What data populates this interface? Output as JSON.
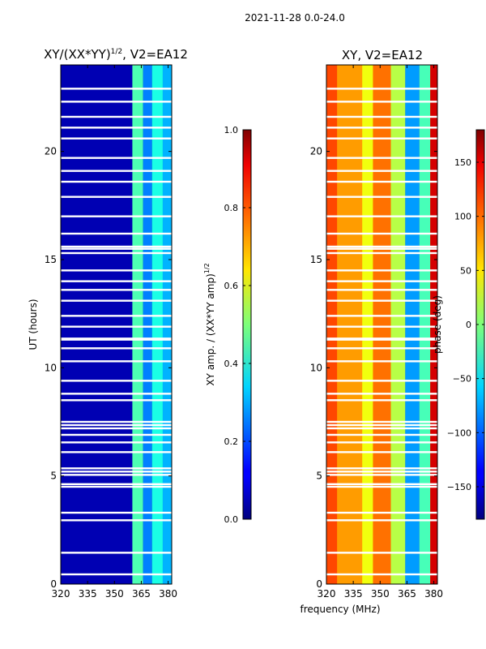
{
  "suptitle": "2021-11-28 0.0-24.0",
  "xlabel_shared": "frequency (MHz)",
  "chart_data": [
    {
      "type": "heatmap",
      "title_main": "XY/(XX*YY)",
      "title_sup": "1/2",
      "title_tail": ", V2=EA12",
      "xlim": [
        320,
        382
      ],
      "ylim": [
        0,
        24
      ],
      "x_ticks": [
        320,
        335,
        350,
        365,
        380
      ],
      "y_ticks": [
        0,
        5,
        10,
        15,
        20
      ],
      "ylabel": "UT (hours)",
      "colorbar": {
        "label_main": "XY amp. / (XX*YY amp)",
        "label_sup": "1/2",
        "range": [
          0.0,
          1.0
        ],
        "ticks": [
          "0.0",
          "0.2",
          "0.4",
          "0.6",
          "0.8",
          "1.0"
        ],
        "colormap": "jet"
      },
      "bands": [
        {
          "from": 320,
          "to": 360,
          "value": 0.05
        },
        {
          "from": 360,
          "to": 366,
          "value": 0.45
        },
        {
          "from": 366,
          "to": 371,
          "value": 0.25
        },
        {
          "from": 371,
          "to": 377,
          "value": 0.4
        },
        {
          "from": 377,
          "to": 382,
          "value": 0.3
        }
      ],
      "gaps_hours": [
        0.45,
        1.45,
        2.95,
        3.3,
        4.5,
        4.62,
        5.05,
        5.2,
        5.35,
        6.1,
        6.55,
        6.9,
        7.2,
        7.35,
        7.5,
        8.5,
        8.8,
        9.4,
        10.3,
        10.9,
        11.3,
        11.35,
        11.9,
        12.4,
        13.1,
        13.6,
        14.0,
        14.5,
        15.3,
        15.5,
        15.6,
        16.2,
        17.0,
        17.9,
        18.6,
        19.1,
        19.7,
        20.6,
        21.1,
        21.6,
        22.3,
        22.9
      ]
    },
    {
      "type": "heatmap",
      "title": "XY, V2=EA12",
      "xlim": [
        320,
        382
      ],
      "ylim": [
        0,
        24
      ],
      "x_ticks": [
        320,
        335,
        350,
        365,
        380
      ],
      "y_ticks": [
        0,
        5,
        10,
        15,
        20
      ],
      "colorbar": {
        "label": "phase (deg)",
        "range": [
          -180,
          180
        ],
        "ticks": [
          "−150",
          "−100",
          "−50",
          "0",
          "50",
          "100",
          "150"
        ],
        "tick_values": [
          -150,
          -100,
          -50,
          0,
          50,
          100,
          150
        ],
        "colormap": "jet"
      },
      "bands": [
        {
          "from": 320,
          "to": 326,
          "value": 110
        },
        {
          "from": 326,
          "to": 340,
          "value": 80
        },
        {
          "from": 340,
          "to": 346,
          "value": 40
        },
        {
          "from": 346,
          "to": 356,
          "value": 95
        },
        {
          "from": 356,
          "to": 364,
          "value": 20
        },
        {
          "from": 364,
          "to": 372,
          "value": -80
        },
        {
          "from": 372,
          "to": 378,
          "value": -20
        },
        {
          "from": 378,
          "to": 382,
          "value": 150
        }
      ],
      "gaps_hours": [
        0.45,
        1.45,
        2.95,
        3.3,
        4.5,
        4.62,
        5.05,
        5.2,
        5.35,
        6.1,
        6.55,
        6.9,
        7.2,
        7.35,
        7.5,
        8.5,
        8.8,
        9.4,
        10.3,
        10.9,
        11.3,
        11.35,
        11.9,
        12.4,
        13.1,
        13.6,
        14.0,
        14.5,
        15.3,
        15.5,
        15.6,
        16.2,
        17.0,
        17.9,
        18.6,
        19.1,
        19.7,
        20.6,
        21.1,
        21.6,
        22.3,
        22.9
      ]
    }
  ]
}
